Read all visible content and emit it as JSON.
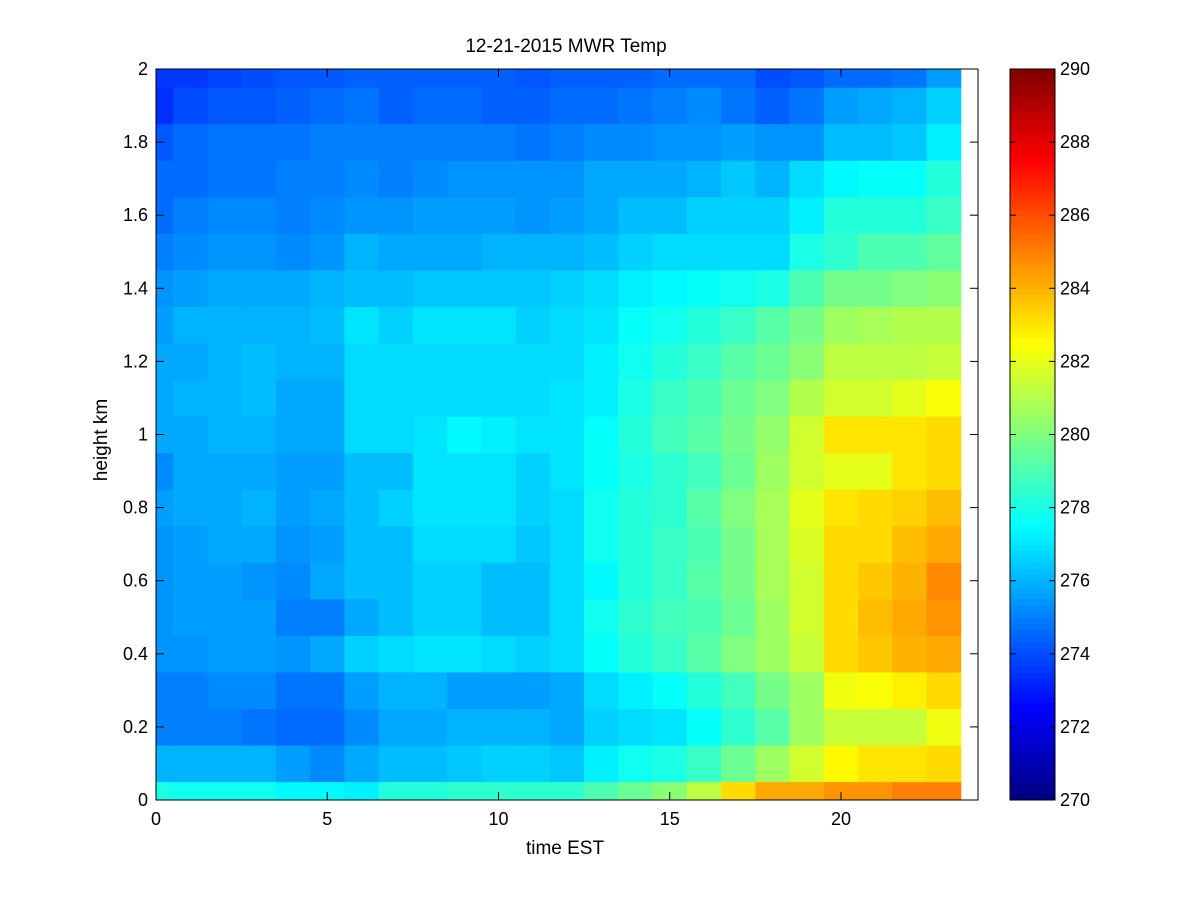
{
  "chart_data": {
    "type": "heatmap",
    "title": "12-21-2015 MWR Temp",
    "xlabel": "time EST",
    "ylabel": "height km",
    "xlim": [
      0,
      24
    ],
    "ylim": [
      0,
      2
    ],
    "xticks": [
      0,
      5,
      10,
      15,
      20
    ],
    "yticks": [
      0,
      0.2,
      0.4,
      0.6,
      0.8,
      1,
      1.2,
      1.4,
      1.6,
      1.8,
      2
    ],
    "colorbar": {
      "range": [
        270,
        290
      ],
      "ticks": [
        270,
        272,
        274,
        276,
        278,
        280,
        282,
        284,
        286,
        288,
        290
      ],
      "colormap": "jet"
    },
    "x_centers": [
      0,
      1,
      2,
      3,
      4,
      5,
      6,
      7,
      8,
      9,
      10,
      11,
      12,
      13,
      14,
      15,
      16,
      17,
      18,
      19,
      20,
      21,
      22,
      23
    ],
    "y_edges": [
      0,
      0.05,
      0.15,
      0.25,
      0.35,
      0.45,
      0.55,
      0.65,
      0.75,
      0.85,
      0.95,
      1.05,
      1.15,
      1.25,
      1.35,
      1.45,
      1.55,
      1.65,
      1.75,
      1.85,
      1.95,
      2.0
    ],
    "values": [
      [
        278.0,
        277.8,
        277.8,
        277.8,
        277.4,
        277.4,
        277.2,
        278.2,
        278.2,
        278.4,
        278.4,
        278.4,
        278.4,
        279.0,
        279.6,
        280.2,
        281.2,
        283.2,
        284.2,
        284.2,
        284.6,
        284.6,
        285.0,
        285.0
      ],
      [
        276.0,
        276.0,
        276.0,
        276.0,
        275.6,
        275.2,
        275.8,
        276.2,
        276.2,
        276.4,
        276.6,
        276.6,
        276.4,
        277.2,
        277.8,
        278.0,
        278.6,
        279.6,
        280.6,
        281.6,
        282.6,
        283.0,
        283.0,
        283.2
      ],
      [
        275.0,
        275.0,
        275.0,
        274.8,
        274.6,
        274.6,
        275.2,
        275.8,
        275.8,
        276.0,
        276.0,
        276.0,
        275.8,
        276.6,
        276.8,
        277.0,
        277.6,
        278.4,
        279.2,
        280.6,
        281.4,
        281.4,
        281.4,
        282.2
      ],
      [
        275.0,
        275.0,
        275.2,
        275.2,
        274.8,
        274.8,
        275.6,
        276.0,
        276.0,
        275.6,
        275.6,
        275.6,
        275.8,
        276.8,
        277.2,
        277.6,
        278.2,
        278.8,
        279.8,
        280.6,
        282.2,
        282.4,
        282.8,
        283.2
      ],
      [
        275.4,
        275.4,
        275.6,
        275.6,
        275.4,
        275.8,
        276.6,
        276.8,
        277.0,
        277.0,
        276.8,
        276.6,
        276.8,
        277.6,
        278.2,
        278.6,
        279.2,
        280.0,
        280.6,
        281.4,
        283.2,
        283.6,
        284.0,
        284.2
      ],
      [
        275.4,
        275.6,
        275.6,
        275.6,
        275.0,
        275.0,
        275.8,
        276.2,
        276.6,
        276.6,
        276.2,
        276.2,
        276.8,
        277.8,
        278.4,
        278.8,
        279.0,
        279.6,
        280.6,
        281.6,
        283.2,
        283.8,
        284.2,
        284.6
      ],
      [
        275.4,
        275.6,
        275.6,
        275.4,
        275.2,
        275.8,
        276.2,
        276.2,
        276.6,
        276.6,
        276.2,
        276.2,
        276.8,
        277.4,
        278.2,
        278.6,
        279.2,
        279.8,
        280.8,
        281.6,
        283.2,
        283.6,
        284.0,
        284.8
      ],
      [
        275.4,
        275.6,
        275.8,
        275.8,
        275.4,
        275.6,
        276.2,
        276.2,
        276.8,
        276.8,
        276.8,
        276.4,
        276.8,
        277.8,
        278.2,
        278.6,
        279.0,
        279.8,
        280.8,
        281.8,
        283.2,
        283.2,
        283.8,
        284.2
      ],
      [
        275.6,
        275.8,
        275.8,
        276.0,
        275.6,
        275.8,
        276.2,
        276.6,
        277.0,
        277.0,
        277.0,
        276.6,
        276.8,
        277.8,
        278.2,
        278.4,
        279.2,
        280.0,
        280.8,
        282.0,
        283.0,
        283.2,
        283.4,
        283.8
      ],
      [
        275.2,
        275.8,
        275.8,
        275.8,
        275.6,
        275.6,
        276.2,
        276.2,
        277.0,
        277.0,
        277.0,
        276.6,
        277.0,
        277.6,
        278.0,
        278.4,
        278.8,
        279.6,
        280.6,
        281.6,
        282.0,
        282.0,
        283.0,
        283.2
      ],
      [
        275.8,
        275.8,
        276.0,
        276.0,
        275.8,
        275.8,
        276.8,
        276.8,
        277.0,
        277.4,
        277.2,
        277.0,
        277.0,
        277.6,
        278.2,
        278.8,
        279.2,
        279.8,
        280.4,
        281.6,
        283.0,
        283.0,
        283.0,
        283.2
      ],
      [
        275.8,
        276.0,
        276.0,
        276.2,
        275.8,
        275.8,
        276.8,
        276.8,
        276.8,
        276.8,
        276.8,
        276.8,
        277.0,
        277.2,
        278.0,
        278.6,
        279.0,
        279.6,
        280.0,
        281.0,
        281.6,
        281.6,
        282.0,
        282.4
      ],
      [
        275.8,
        275.8,
        276.0,
        276.2,
        276.0,
        276.0,
        276.8,
        276.8,
        276.8,
        276.8,
        276.8,
        276.8,
        276.8,
        277.2,
        277.8,
        278.2,
        278.6,
        279.2,
        279.6,
        280.2,
        281.2,
        281.2,
        281.2,
        281.4
      ],
      [
        275.6,
        276.0,
        276.0,
        276.0,
        276.0,
        276.2,
        277.0,
        276.6,
        277.0,
        277.0,
        277.0,
        276.6,
        276.8,
        277.0,
        277.6,
        277.8,
        278.2,
        278.6,
        279.2,
        279.8,
        280.6,
        280.8,
        281.0,
        281.0
      ],
      [
        275.4,
        275.6,
        275.8,
        275.8,
        275.8,
        276.0,
        276.2,
        276.2,
        276.4,
        276.4,
        276.4,
        276.4,
        276.6,
        276.8,
        277.2,
        277.4,
        277.6,
        277.8,
        278.0,
        279.0,
        279.8,
        279.8,
        280.0,
        280.2
      ],
      [
        275.0,
        275.2,
        275.4,
        275.4,
        275.2,
        275.4,
        276.0,
        275.8,
        275.8,
        275.8,
        276.0,
        276.0,
        276.0,
        276.2,
        276.6,
        276.8,
        276.8,
        276.8,
        276.8,
        278.0,
        278.4,
        279.0,
        279.0,
        279.4
      ],
      [
        274.6,
        275.0,
        275.2,
        275.2,
        275.0,
        275.2,
        275.4,
        275.4,
        275.6,
        275.6,
        275.6,
        275.4,
        275.6,
        275.8,
        276.2,
        276.2,
        276.6,
        276.6,
        276.6,
        277.2,
        278.2,
        278.2,
        278.2,
        278.6
      ],
      [
        274.6,
        274.6,
        274.8,
        274.8,
        275.0,
        275.0,
        275.2,
        275.0,
        275.2,
        275.4,
        275.4,
        275.4,
        275.4,
        275.8,
        275.8,
        275.8,
        276.0,
        276.4,
        276.0,
        276.8,
        277.4,
        277.6,
        277.6,
        278.2
      ],
      [
        274.2,
        274.6,
        274.8,
        274.8,
        274.8,
        275.0,
        275.0,
        275.0,
        275.0,
        275.0,
        275.0,
        274.8,
        275.0,
        275.2,
        275.2,
        275.4,
        275.4,
        275.6,
        275.4,
        275.4,
        276.2,
        276.2,
        276.4,
        277.2
      ],
      [
        273.4,
        274.0,
        274.2,
        274.2,
        274.4,
        274.6,
        274.8,
        274.4,
        274.6,
        274.6,
        274.4,
        274.4,
        274.6,
        274.6,
        274.8,
        275.0,
        275.2,
        274.8,
        274.4,
        274.8,
        275.6,
        275.8,
        276.0,
        276.6
      ],
      [
        273.6,
        273.6,
        273.8,
        274.0,
        274.2,
        274.2,
        274.4,
        274.4,
        274.4,
        274.4,
        274.4,
        274.2,
        274.4,
        274.4,
        274.4,
        274.6,
        274.6,
        274.6,
        274.0,
        274.2,
        274.6,
        274.6,
        274.8,
        275.6
      ]
    ]
  }
}
